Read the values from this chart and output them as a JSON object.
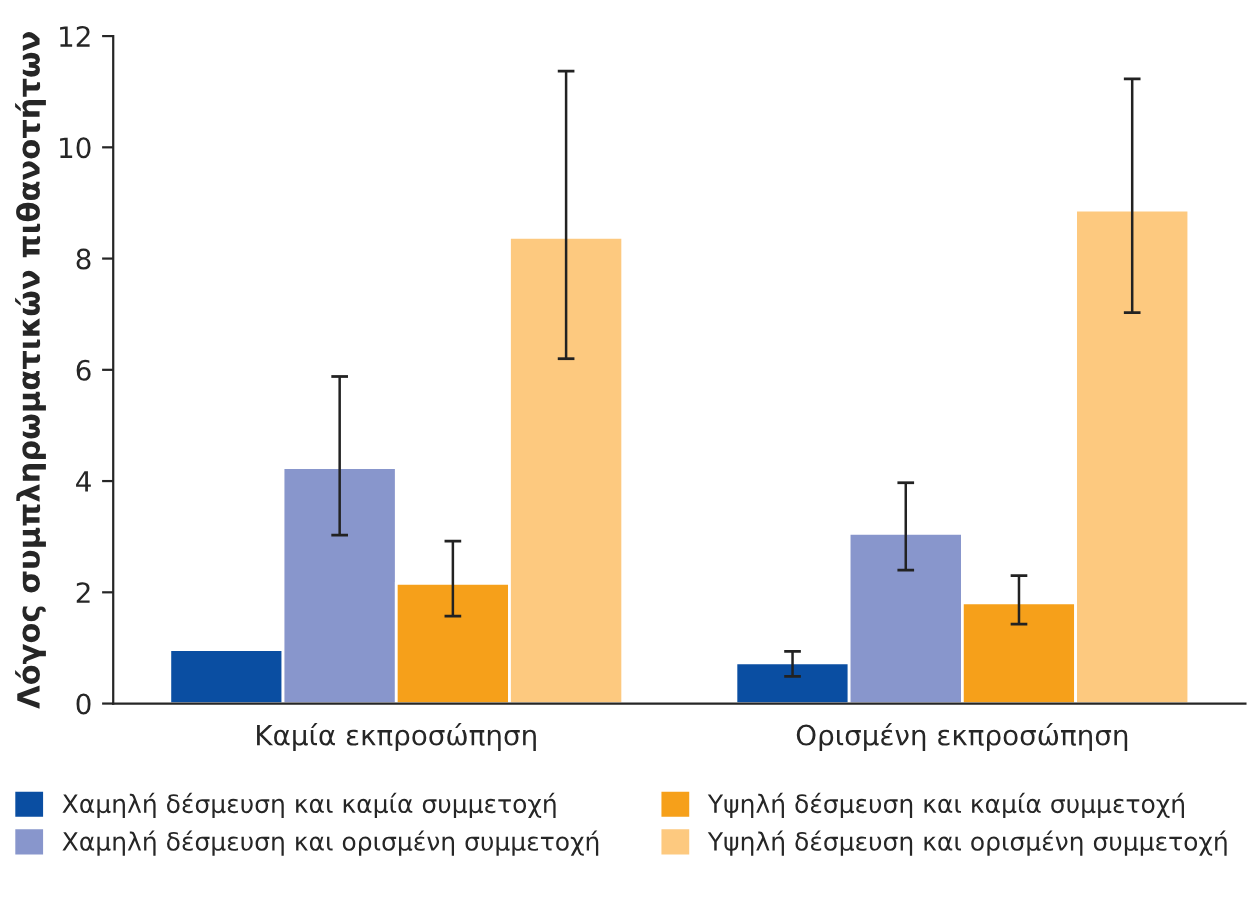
{
  "chart_data": {
    "type": "bar",
    "ylabel": "Λόγος συμπληρωματικών πιθανοτήτων",
    "categories": [
      "Καμία εκπροσώπηση",
      "Ορισμένη εκπροσώπηση"
    ],
    "series": [
      {
        "name": "Χαμηλή δέσμευση και καμία συμμετοχή",
        "color": "#0a4ea2",
        "values": [
          0.97,
          0.73
        ],
        "errors": [
          null,
          [
            0.49,
            0.94
          ]
        ]
      },
      {
        "name": "Χαμηλή δέσμευση και ορισμένη συμμετοχή",
        "color": "#8896cc",
        "values": [
          4.24,
          3.06
        ],
        "errors": [
          [
            3.03,
            5.88
          ],
          [
            2.4,
            3.97
          ]
        ]
      },
      {
        "name": "Υψηλή δέσμευση και καμία συμμετοχή",
        "color": "#f6a01a",
        "values": [
          2.16,
          1.81
        ],
        "errors": [
          [
            1.57,
            2.92
          ],
          [
            1.43,
            2.3
          ]
        ]
      },
      {
        "name": "Υψηλή δέσμευση και ορισμένη συμμετοχή",
        "color": "#fdc97f",
        "values": [
          8.38,
          8.87
        ],
        "errors": [
          [
            6.2,
            11.37
          ],
          [
            7.03,
            11.23
          ]
        ]
      }
    ],
    "ylim": [
      0,
      12
    ],
    "yticks": [
      0,
      2,
      4,
      6,
      8,
      10,
      12
    ],
    "grid": false,
    "legend": "bottom"
  }
}
